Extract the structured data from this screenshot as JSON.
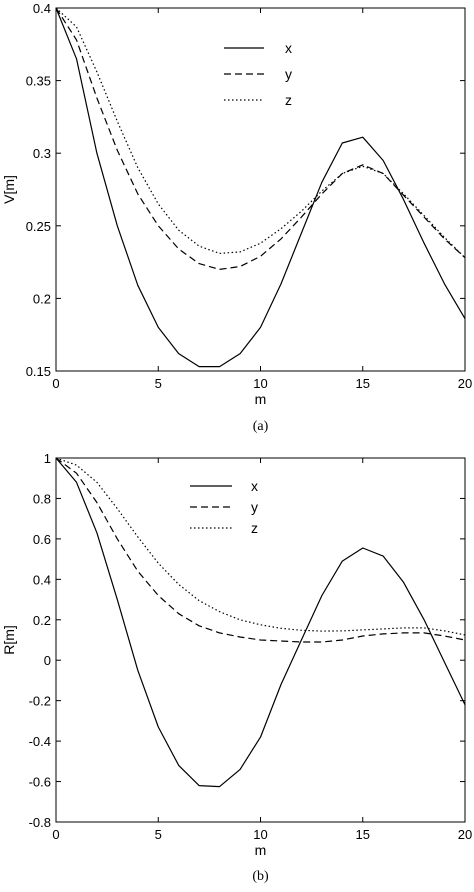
{
  "chart_data": [
    {
      "type": "line",
      "caption": "(a)",
      "xlabel": "m",
      "ylabel": "V[m]",
      "xlim": [
        0,
        20
      ],
      "ylim": [
        0.15,
        0.4
      ],
      "xticks": [
        "0",
        "5",
        "10",
        "15",
        "20"
      ],
      "yticks": [
        "0.15",
        "0.2",
        "0.25",
        "0.3",
        "0.35",
        "0.4"
      ],
      "grid": false,
      "legend_position": "top-center",
      "x": [
        0,
        1,
        2,
        3,
        4,
        5,
        6,
        7,
        8,
        9,
        10,
        11,
        12,
        13,
        14,
        15,
        16,
        17,
        18,
        19,
        20
      ],
      "series": [
        {
          "name": "x",
          "style": "solid",
          "values": [
            0.4,
            0.365,
            0.3,
            0.25,
            0.209,
            0.18,
            0.162,
            0.153,
            0.153,
            0.162,
            0.18,
            0.21,
            0.245,
            0.28,
            0.307,
            0.311,
            0.295,
            0.268,
            0.238,
            0.21,
            0.186
          ]
        },
        {
          "name": "y",
          "style": "dashed",
          "values": [
            0.4,
            0.378,
            0.338,
            0.302,
            0.272,
            0.25,
            0.234,
            0.224,
            0.22,
            0.222,
            0.229,
            0.241,
            0.256,
            0.272,
            0.286,
            0.292,
            0.286,
            0.271,
            0.256,
            0.241,
            0.228
          ]
        },
        {
          "name": "z",
          "style": "dotted",
          "values": [
            0.4,
            0.387,
            0.356,
            0.322,
            0.29,
            0.265,
            0.247,
            0.236,
            0.231,
            0.232,
            0.238,
            0.248,
            0.26,
            0.274,
            0.286,
            0.291,
            0.286,
            0.272,
            0.257,
            0.242,
            0.228
          ]
        }
      ]
    },
    {
      "type": "line",
      "caption": "(b)",
      "xlabel": "m",
      "ylabel": "R[m]",
      "xlim": [
        0,
        20
      ],
      "ylim": [
        -0.8,
        1
      ],
      "xticks": [
        "0",
        "5",
        "10",
        "15",
        "20"
      ],
      "yticks": [
        "-0.8",
        "-0.6",
        "-0.4",
        "-0.2",
        "0",
        "0.2",
        "0.4",
        "0.6",
        "0.8",
        "1"
      ],
      "grid": false,
      "legend_position": "top-center",
      "x": [
        0,
        1,
        2,
        3,
        4,
        5,
        6,
        7,
        8,
        9,
        10,
        11,
        12,
        13,
        14,
        15,
        16,
        17,
        18,
        19,
        20
      ],
      "series": [
        {
          "name": "x",
          "style": "solid",
          "values": [
            1,
            0.88,
            0.63,
            0.3,
            -0.05,
            -0.33,
            -0.52,
            -0.62,
            -0.625,
            -0.54,
            -0.38,
            -0.12,
            0.1,
            0.32,
            0.49,
            0.555,
            0.515,
            0.385,
            0.2,
            -0.01,
            -0.22
          ]
        },
        {
          "name": "y",
          "style": "dashed",
          "values": [
            1,
            0.925,
            0.78,
            0.6,
            0.44,
            0.32,
            0.23,
            0.17,
            0.135,
            0.115,
            0.1,
            0.095,
            0.09,
            0.09,
            0.1,
            0.12,
            0.13,
            0.135,
            0.135,
            0.12,
            0.1
          ]
        },
        {
          "name": "z",
          "style": "dotted",
          "values": [
            1,
            0.965,
            0.88,
            0.75,
            0.61,
            0.48,
            0.375,
            0.295,
            0.24,
            0.2,
            0.175,
            0.158,
            0.148,
            0.144,
            0.145,
            0.15,
            0.155,
            0.16,
            0.16,
            0.145,
            0.125
          ]
        }
      ]
    }
  ]
}
